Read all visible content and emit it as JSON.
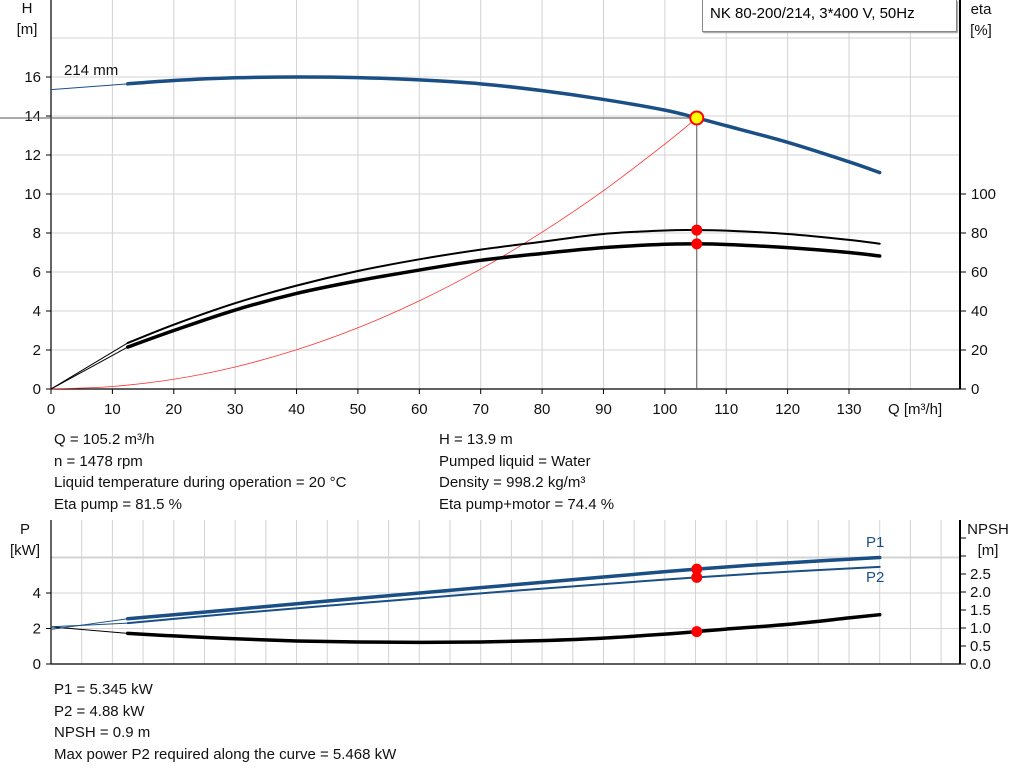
{
  "chart_data": [
    {
      "type": "line",
      "title": "NK 80-200/214, 3*400 V, 50Hz",
      "xlabel": "Q [m³/h]",
      "ylabel": "H\n[m]",
      "ylabel_right": "eta\n[%]",
      "xlim": [
        0,
        148.6
      ],
      "ylim": [
        0,
        20
      ],
      "ylim_right": [
        0,
        200
      ],
      "xticks": [
        0,
        10,
        20,
        30,
        40,
        50,
        60,
        70,
        80,
        90,
        100,
        110,
        120,
        130
      ],
      "yticks": [
        0,
        2,
        4,
        6,
        8,
        10,
        12,
        14,
        16
      ],
      "yticks_right": [
        0,
        20,
        40,
        60,
        80,
        100
      ],
      "grid": true,
      "annotation": "214 mm",
      "head_curve": {
        "axis": "left",
        "color": "#1a4f85",
        "x": [
          12.5,
          20,
          30,
          40,
          50,
          60,
          70,
          80,
          90,
          100,
          105.2,
          110,
          120,
          130,
          135
        ],
        "y": [
          15.65,
          15.82,
          15.96,
          16.0,
          15.97,
          15.85,
          15.65,
          15.3,
          14.85,
          14.3,
          13.9,
          13.5,
          12.65,
          11.65,
          11.1
        ],
        "extension": {
          "x": [
            0,
            12.5
          ],
          "y": [
            15.35,
            15.65
          ]
        }
      },
      "eta_pump": {
        "axis": "right",
        "color": "#000000",
        "x": [
          12.5,
          20,
          30,
          40,
          50,
          60,
          70,
          80,
          90,
          100,
          105.2,
          110,
          120,
          130,
          135
        ],
        "y": [
          23.6,
          33,
          44,
          53,
          60.5,
          66.5,
          71.5,
          75.5,
          79.5,
          81.3,
          81.5,
          81.2,
          79.5,
          76.5,
          74.5
        ],
        "extension": {
          "x": [
            0,
            12.5
          ],
          "y": [
            0,
            23.6
          ]
        }
      },
      "eta_pump_motor": {
        "axis": "right",
        "color": "#000000",
        "x": [
          12.5,
          20,
          30,
          40,
          50,
          60,
          70,
          80,
          90,
          100,
          105.2,
          110,
          120,
          130,
          135
        ],
        "y": [
          21.5,
          30,
          40.5,
          49,
          55.5,
          61,
          66,
          69.5,
          72.5,
          74.2,
          74.4,
          74.1,
          72.5,
          70,
          68.2
        ],
        "extension": {
          "x": [
            0,
            12.5
          ],
          "y": [
            0,
            21.5
          ]
        }
      },
      "system_curve": {
        "axis": "left",
        "color": "#ff3030",
        "x": [
          0,
          10,
          20,
          30,
          40,
          50,
          60,
          70,
          80,
          90,
          100,
          105.2
        ],
        "y": [
          0,
          0.13,
          0.5,
          1.13,
          2.01,
          3.14,
          4.52,
          6.15,
          8.04,
          10.17,
          12.56,
          13.9
        ]
      },
      "operating_point": {
        "Q": 105.2,
        "H": 13.9,
        "eta_pump": 81.5,
        "eta_pump_motor": 74.4
      }
    },
    {
      "type": "line",
      "ylabel": "P\n[kW]",
      "ylabel_right": "NPSH\n[m]",
      "xlim": [
        0,
        148.6
      ],
      "ylim": [
        0,
        8
      ],
      "ylim_right": [
        0,
        4
      ],
      "yticks": [
        0,
        2,
        4
      ],
      "yticks_right": [
        "0.0",
        "0.5",
        "1.0",
        "1.5",
        "2.0",
        "2.5"
      ],
      "grid": true,
      "series": [
        {
          "name": "P1",
          "axis": "left",
          "color": "#1a4f85",
          "x": [
            12.5,
            30,
            50,
            70,
            90,
            105.2,
            120,
            135
          ],
          "y": [
            2.55,
            3.08,
            3.7,
            4.3,
            4.9,
            5.345,
            5.7,
            6.0
          ],
          "extension": {
            "x": [
              0,
              12.5
            ],
            "y": [
              1.95,
              2.55
            ]
          }
        },
        {
          "name": "P2",
          "axis": "left",
          "color": "#1a4f85",
          "x": [
            12.5,
            30,
            50,
            70,
            90,
            105.2,
            120,
            135
          ],
          "y": [
            2.3,
            2.85,
            3.42,
            3.98,
            4.5,
            4.88,
            5.2,
            5.47
          ],
          "extension": {
            "x": [
              0,
              12.5
            ],
            "y": [
              2.1,
              2.3
            ]
          }
        },
        {
          "name": "",
          "axis": "right",
          "color": "#000000",
          "x": [
            12.5,
            20,
            30,
            40,
            50,
            60,
            70,
            80,
            90,
            100,
            105.2,
            110,
            120,
            130,
            135
          ],
          "y": [
            0.85,
            0.78,
            0.7,
            0.64,
            0.61,
            0.6,
            0.61,
            0.65,
            0.72,
            0.83,
            0.9,
            0.97,
            1.1,
            1.28,
            1.37
          ],
          "extension": {
            "x": [
              0,
              12.5
            ],
            "y": [
              1.03,
              0.85
            ]
          }
        }
      ],
      "operating_point": {
        "Q": 105.2,
        "P1": 5.345,
        "P2": 4.88,
        "NPSH": 0.9
      }
    }
  ],
  "info_top": {
    "left": [
      "Q = 105.2 m³/h",
      "n = 1478 rpm",
      "Liquid temperature during operation = 20 °C",
      "Eta pump = 81.5 %"
    ],
    "right": [
      "H = 13.9 m",
      "Pumped liquid = Water",
      "Density = 998.2 kg/m³",
      "Eta pump+motor = 74.4 %"
    ]
  },
  "info_bottom": [
    "P1 = 5.345 kW",
    "P2 = 4.88 kW",
    "NPSH = 0.9 m",
    "Max power P2 required along the curve = 5.468 kW"
  ],
  "colors": {
    "head": "#1a4f85",
    "marker": "#ff0000",
    "marker_fill": "#ffff00",
    "system": "#ff3030",
    "grid": "#d3d3d3"
  }
}
